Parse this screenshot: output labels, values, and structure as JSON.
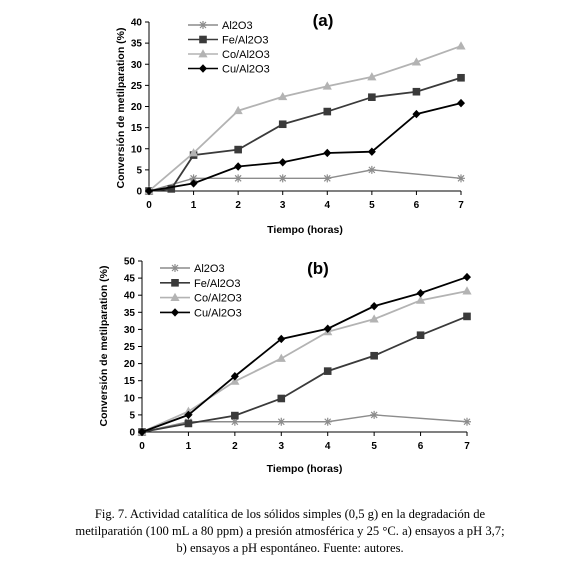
{
  "chart_data": [
    {
      "type": "line",
      "panel_label": "(a)",
      "xlabel": "Tiempo (horas)",
      "ylabel": "Conversión de metilparation (%)",
      "xlim": [
        0,
        7
      ],
      "ylim": [
        0,
        40
      ],
      "xticks": [
        0,
        1,
        2,
        3,
        4,
        5,
        6,
        7
      ],
      "yticks": [
        0,
        5,
        10,
        15,
        20,
        25,
        30,
        35,
        40
      ],
      "legend_position": "top-left",
      "series": [
        {
          "name": "Al2O3",
          "marker": "asterisk",
          "color": "#8c8c8c",
          "x": [
            0,
            1,
            2,
            3,
            4,
            5,
            7
          ],
          "y": [
            0,
            3,
            3,
            3,
            3,
            5,
            3
          ]
        },
        {
          "name": "Fe/Al2O3",
          "marker": "square",
          "color": "#3a3a3a",
          "x": [
            0,
            0.5,
            1,
            2,
            3,
            4,
            5,
            6,
            7
          ],
          "y": [
            0,
            0.5,
            8.5,
            9.8,
            15.8,
            18.8,
            22.2,
            23.5,
            26.8
          ]
        },
        {
          "name": "Co/Al2O3",
          "marker": "triangle",
          "color": "#b3b3b3",
          "x": [
            0,
            1,
            2,
            3,
            4,
            5,
            6,
            7
          ],
          "y": [
            0,
            9,
            19,
            22.3,
            24.8,
            27,
            30.5,
            34.3
          ]
        },
        {
          "name": "Cu/Al2O3",
          "marker": "diamond",
          "color": "#000000",
          "x": [
            0,
            1,
            2,
            3,
            4,
            5,
            6,
            7
          ],
          "y": [
            0,
            1.8,
            5.8,
            6.8,
            9,
            9.3,
            18.2,
            20.8
          ]
        }
      ]
    },
    {
      "type": "line",
      "panel_label": "(b)",
      "xlabel": "Tiempo (horas)",
      "ylabel": "Conversión de metilparation (%)",
      "xlim": [
        0,
        7
      ],
      "ylim": [
        0,
        50
      ],
      "xticks": [
        0,
        1,
        2,
        3,
        4,
        5,
        6,
        7
      ],
      "yticks": [
        0,
        5,
        10,
        15,
        20,
        25,
        30,
        35,
        40,
        45,
        50
      ],
      "legend_position": "top-left",
      "series": [
        {
          "name": "Al2O3",
          "marker": "asterisk",
          "color": "#8c8c8c",
          "x": [
            0,
            1,
            2,
            3,
            4,
            5,
            7
          ],
          "y": [
            0,
            3,
            3,
            3,
            3,
            5,
            3
          ]
        },
        {
          "name": "Fe/Al2O3",
          "marker": "square",
          "color": "#3a3a3a",
          "x": [
            0,
            1,
            2,
            3,
            4,
            5,
            6,
            7
          ],
          "y": [
            0,
            2.5,
            4.8,
            9.8,
            17.8,
            22.3,
            28.3,
            33.8
          ]
        },
        {
          "name": "Co/Al2O3",
          "marker": "triangle",
          "color": "#b3b3b3",
          "x": [
            0,
            1,
            2,
            3,
            4,
            5,
            6,
            7
          ],
          "y": [
            0,
            6,
            14.8,
            21.5,
            29.3,
            33,
            38.5,
            41.2
          ]
        },
        {
          "name": "Cu/Al2O3",
          "marker": "diamond",
          "color": "#000000",
          "x": [
            0,
            1,
            2,
            3,
            4,
            5,
            6,
            7
          ],
          "y": [
            0,
            5,
            16.3,
            27.2,
            30.2,
            36.8,
            40.6,
            45.3
          ]
        }
      ]
    }
  ],
  "caption": {
    "line1": "Fig. 7. Actividad catalítica de los sólidos simples (0,5 g) en la degradación de",
    "line2": "metilparatión (100 mL a 80 ppm) a presión atmosférica y 25 °C. a) ensayos a pH 3,7;",
    "line3": "b) ensayos a pH espontáneo. Fuente: autores."
  }
}
